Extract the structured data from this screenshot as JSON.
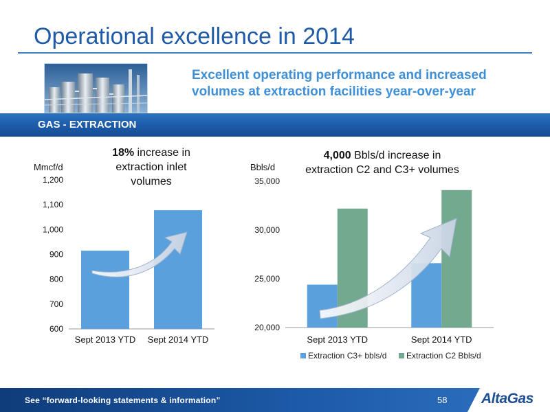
{
  "slide": {
    "title": "Operational excellence in 2014",
    "headline_line1": "Excellent operating performance and increased",
    "headline_line2": "volumes at extraction facilities year-over-year",
    "section": "GAS - EXTRACTION",
    "footer_note": "See “forward-looking statements & information”",
    "page_number": "58",
    "logo": "AltaGas"
  },
  "colors": {
    "title": "#1f5aa6",
    "headline": "#3f8fd6",
    "bar_blue": "#5aa0dc",
    "bar_green": "#72a98f",
    "band": "#1c5aa8"
  },
  "chart_data": [
    {
      "type": "bar",
      "annotation_bold": "18%",
      "annotation_rest_1": "increase in",
      "annotation_rest_2": "extraction inlet",
      "annotation_rest_3": "volumes",
      "ylabel": "Mmcf/d",
      "categories": [
        "Sept 2013 YTD",
        "Sept 2014 YTD"
      ],
      "values": [
        915,
        1078
      ],
      "ylim": [
        600,
        1200
      ],
      "yticks": [
        600,
        700,
        800,
        900,
        1000,
        1100,
        1200
      ],
      "ytick_labels": [
        "600",
        "700",
        "800",
        "900",
        "1,000",
        "1,100",
        "1,200"
      ],
      "grid": false
    },
    {
      "type": "bar",
      "annotation_bold": "4,000",
      "annotation_rest_1": "Bbls/d increase in",
      "annotation_rest_2": "extraction C2 and C3+ volumes",
      "ylabel": "Bbls/d",
      "categories": [
        "Sept 2013 YTD",
        "Sept 2014 YTD"
      ],
      "series": [
        {
          "name": "Extraction C3+ bbls/d",
          "values": [
            24400,
            26600
          ]
        },
        {
          "name": "Extraction C2 Bbls/d",
          "values": [
            32200,
            34100
          ]
        }
      ],
      "ylim": [
        20000,
        35000
      ],
      "yticks": [
        20000,
        25000,
        30000,
        35000
      ],
      "ytick_labels": [
        "20,000",
        "25,000",
        "30,000",
        "35,000"
      ],
      "legend": "bottom",
      "grid": false
    }
  ]
}
